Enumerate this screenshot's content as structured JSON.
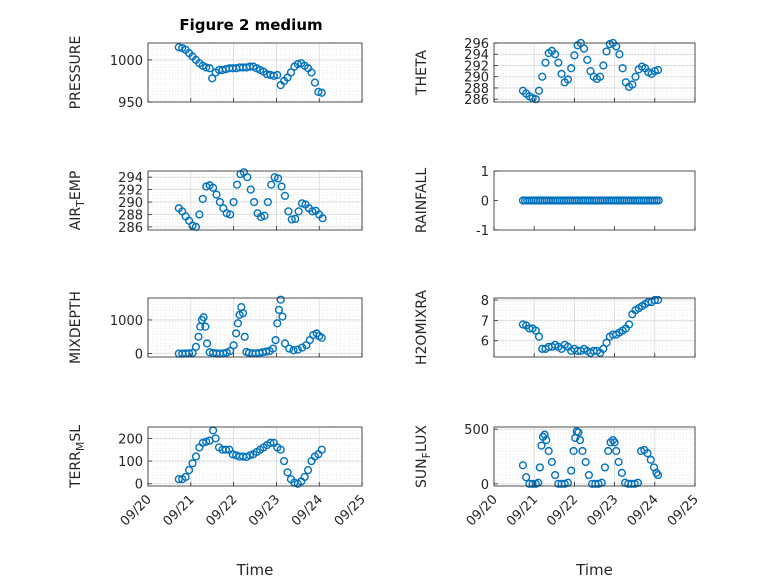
{
  "figure_title": "Figure 2 medium",
  "marker_color": "#0072BD",
  "chart_data": [
    {
      "type": "scatter",
      "subplot": "top-left",
      "ylabel": "PRESSURE",
      "ylim": [
        950,
        1020
      ],
      "yticks": [
        950,
        1000
      ],
      "xlim": [
        0,
        5
      ],
      "xticks": [
        "09/20",
        "09/21",
        "09/22",
        "09/23",
        "09/24",
        "09/25"
      ],
      "grid": true,
      "x": [
        0.72,
        0.8,
        0.88,
        0.96,
        1.04,
        1.12,
        1.2,
        1.28,
        1.36,
        1.44,
        1.5,
        1.58,
        1.66,
        1.74,
        1.82,
        1.9,
        1.98,
        2.06,
        2.14,
        2.22,
        2.3,
        2.38,
        2.46,
        2.54,
        2.62,
        2.7,
        2.78,
        2.86,
        2.94,
        3.02,
        3.1,
        3.18,
        3.26,
        3.34,
        3.42,
        3.5,
        3.58,
        3.66,
        3.74,
        3.82,
        3.9,
        3.98,
        4.06
      ],
      "y": [
        1015,
        1014,
        1012,
        1008,
        1004,
        1000,
        996,
        993,
        991,
        990,
        978,
        985,
        988,
        988,
        989,
        990,
        990,
        990,
        991,
        991,
        991,
        992,
        992,
        990,
        988,
        986,
        983,
        982,
        981,
        982,
        970,
        975,
        979,
        985,
        992,
        995,
        996,
        993,
        990,
        985,
        973,
        962,
        961
      ]
    },
    {
      "type": "scatter",
      "subplot": "top-right",
      "ylabel": "THETA",
      "ylim": [
        285.5,
        296
      ],
      "yticks": [
        286,
        288,
        290,
        292,
        294,
        296
      ],
      "xlim": [
        0,
        5
      ],
      "xticks": [
        "09/20",
        "09/21",
        "09/22",
        "09/23",
        "09/24",
        "09/25"
      ],
      "grid": true,
      "x": [
        0.72,
        0.8,
        0.88,
        0.96,
        1.04,
        1.12,
        1.2,
        1.28,
        1.36,
        1.44,
        1.52,
        1.6,
        1.68,
        1.76,
        1.84,
        1.92,
        2.0,
        2.08,
        2.16,
        2.24,
        2.32,
        2.4,
        2.48,
        2.56,
        2.64,
        2.72,
        2.8,
        2.88,
        2.96,
        3.04,
        3.12,
        3.2,
        3.28,
        3.36,
        3.44,
        3.52,
        3.6,
        3.68,
        3.76,
        3.84,
        3.92,
        4.0,
        4.08
      ],
      "y": [
        287.5,
        287,
        286.5,
        286.2,
        286,
        287.5,
        290,
        292.5,
        294.2,
        294.6,
        294,
        292.5,
        290.5,
        289,
        289.5,
        291.5,
        293.8,
        295.6,
        296,
        295,
        293,
        291,
        290,
        289.6,
        290,
        292,
        294.5,
        295.8,
        296,
        295.4,
        294,
        291.5,
        289,
        288.2,
        288.6,
        290,
        291.3,
        291.8,
        291.5,
        290.8,
        290.5,
        291,
        291.2
      ]
    },
    {
      "type": "scatter",
      "subplot": "row2-left",
      "ylabel": "AIR_TEMP",
      "ylim": [
        285.5,
        295
      ],
      "yticks": [
        286,
        288,
        290,
        292,
        294
      ],
      "xlim": [
        0,
        5
      ],
      "xticks": [
        "09/20",
        "09/21",
        "09/22",
        "09/23",
        "09/24",
        "09/25"
      ],
      "grid": true,
      "x": [
        0.72,
        0.8,
        0.88,
        0.96,
        1.04,
        1.12,
        1.2,
        1.28,
        1.36,
        1.44,
        1.52,
        1.6,
        1.68,
        1.76,
        1.84,
        1.92,
        2.0,
        2.08,
        2.16,
        2.24,
        2.32,
        2.4,
        2.48,
        2.56,
        2.64,
        2.72,
        2.8,
        2.88,
        2.96,
        3.04,
        3.12,
        3.2,
        3.28,
        3.36,
        3.44,
        3.52,
        3.6,
        3.68,
        3.76,
        3.84,
        3.92,
        4.0,
        4.08
      ],
      "y": [
        289,
        288.5,
        287.7,
        287,
        286.2,
        286,
        288,
        290.5,
        292.5,
        292.7,
        292.3,
        291.2,
        290,
        289,
        288.2,
        288,
        290,
        292.8,
        294.5,
        294.8,
        294,
        292,
        290,
        288.2,
        287.6,
        287.8,
        290,
        292.8,
        294,
        293.8,
        292.5,
        291,
        288.5,
        287.2,
        287.3,
        288.5,
        289.8,
        289.6,
        289,
        288.5,
        288.6,
        288,
        287.4
      ]
    },
    {
      "type": "scatter",
      "subplot": "row2-right",
      "ylabel": "RAINFALL",
      "ylim": [
        -1,
        1
      ],
      "yticks": [
        -1,
        0,
        1
      ],
      "xlim": [
        0,
        5
      ],
      "xticks": [
        "09/20",
        "09/21",
        "09/22",
        "09/23",
        "09/24",
        "09/25"
      ],
      "grid": false,
      "x_range": [
        0.72,
        4.1
      ],
      "value": 0
    },
    {
      "type": "scatter",
      "subplot": "row3-left",
      "ylabel": "MIXDEPTH",
      "ylim": [
        -100,
        1650
      ],
      "yticks": [
        0,
        1000
      ],
      "xlim": [
        0,
        5
      ],
      "xticks": [
        "09/20",
        "09/21",
        "09/22",
        "09/23",
        "09/24",
        "09/25"
      ],
      "grid": true,
      "x": [
        0.72,
        0.8,
        0.88,
        0.96,
        1.04,
        1.12,
        1.18,
        1.22,
        1.26,
        1.3,
        1.34,
        1.38,
        1.44,
        1.52,
        1.6,
        1.68,
        1.76,
        1.84,
        1.92,
        2.0,
        2.06,
        2.1,
        2.14,
        2.18,
        2.22,
        2.26,
        2.3,
        2.36,
        2.44,
        2.52,
        2.6,
        2.68,
        2.76,
        2.84,
        2.92,
        2.98,
        3.02,
        3.06,
        3.1,
        3.14,
        3.2,
        3.3,
        3.4,
        3.5,
        3.6,
        3.7,
        3.78,
        3.86,
        3.94,
        4.0,
        4.06
      ],
      "y": [
        0,
        0,
        5,
        10,
        20,
        200,
        500,
        800,
        1000,
        1080,
        800,
        300,
        40,
        20,
        10,
        0,
        10,
        30,
        80,
        250,
        600,
        900,
        1150,
        1380,
        1200,
        500,
        50,
        20,
        10,
        10,
        20,
        40,
        60,
        80,
        150,
        400,
        900,
        1300,
        1600,
        1100,
        300,
        150,
        100,
        120,
        180,
        250,
        400,
        550,
        600,
        520,
        470
      ]
    },
    {
      "type": "scatter",
      "subplot": "row3-right",
      "ylabel": "H2OMIXRA",
      "ylim": [
        5.2,
        8.1
      ],
      "yticks": [
        6,
        7,
        8
      ],
      "xlim": [
        0,
        5
      ],
      "xticks": [
        "09/20",
        "09/21",
        "09/22",
        "09/23",
        "09/24",
        "09/25"
      ],
      "grid": true,
      "x": [
        0.72,
        0.8,
        0.88,
        0.96,
        1.04,
        1.12,
        1.2,
        1.28,
        1.36,
        1.44,
        1.52,
        1.6,
        1.68,
        1.76,
        1.84,
        1.92,
        2.0,
        2.08,
        2.16,
        2.24,
        2.32,
        2.4,
        2.48,
        2.56,
        2.64,
        2.72,
        2.8,
        2.88,
        2.96,
        3.04,
        3.12,
        3.2,
        3.28,
        3.36,
        3.44,
        3.52,
        3.6,
        3.68,
        3.76,
        3.84,
        3.92,
        4.0,
        4.08
      ],
      "y": [
        6.8,
        6.75,
        6.6,
        6.6,
        6.5,
        6.2,
        5.6,
        5.6,
        5.7,
        5.7,
        5.8,
        5.7,
        5.6,
        5.8,
        5.7,
        5.5,
        5.6,
        5.5,
        5.5,
        5.6,
        5.5,
        5.4,
        5.5,
        5.5,
        5.4,
        5.6,
        5.9,
        6.2,
        6.3,
        6.3,
        6.4,
        6.5,
        6.6,
        6.8,
        7.3,
        7.5,
        7.6,
        7.7,
        7.8,
        7.9,
        7.9,
        8.0,
        8.0
      ]
    },
    {
      "type": "scatter",
      "subplot": "bottom-left",
      "ylabel": "TERR_MSL",
      "ylim": [
        -10,
        250
      ],
      "yticks": [
        0,
        100,
        200
      ],
      "xlim": [
        0,
        5
      ],
      "xticks": [
        "09/20",
        "09/21",
        "09/22",
        "09/23",
        "09/24",
        "09/25"
      ],
      "grid": true,
      "x": [
        0.72,
        0.8,
        0.88,
        0.96,
        1.04,
        1.12,
        1.2,
        1.28,
        1.36,
        1.44,
        1.52,
        1.58,
        1.66,
        1.74,
        1.82,
        1.9,
        1.98,
        2.06,
        2.14,
        2.22,
        2.3,
        2.38,
        2.46,
        2.54,
        2.62,
        2.7,
        2.78,
        2.86,
        2.94,
        3.02,
        3.1,
        3.18,
        3.26,
        3.34,
        3.42,
        3.5,
        3.58,
        3.66,
        3.74,
        3.82,
        3.9,
        3.98,
        4.06
      ],
      "y": [
        20,
        20,
        30,
        60,
        90,
        120,
        160,
        180,
        185,
        190,
        235,
        200,
        160,
        150,
        150,
        150,
        130,
        125,
        120,
        120,
        118,
        125,
        130,
        140,
        150,
        160,
        170,
        180,
        180,
        160,
        150,
        100,
        50,
        20,
        5,
        0,
        10,
        30,
        60,
        100,
        120,
        130,
        150
      ]
    },
    {
      "type": "scatter",
      "subplot": "bottom-right",
      "ylabel": "SUN_FLUX",
      "ylim": [
        -20,
        520
      ],
      "yticks": [
        0,
        500
      ],
      "xlim": [
        0,
        5
      ],
      "xticks": [
        "09/20",
        "09/21",
        "09/22",
        "09/23",
        "09/24",
        "09/25"
      ],
      "grid": true,
      "x": [
        0.72,
        0.8,
        0.88,
        0.96,
        1.04,
        1.1,
        1.14,
        1.18,
        1.22,
        1.26,
        1.3,
        1.36,
        1.44,
        1.52,
        1.6,
        1.68,
        1.76,
        1.84,
        1.92,
        1.98,
        2.02,
        2.06,
        2.1,
        2.14,
        2.2,
        2.28,
        2.36,
        2.44,
        2.52,
        2.6,
        2.68,
        2.76,
        2.84,
        2.9,
        2.96,
        3.0,
        3.04,
        3.1,
        3.18,
        3.26,
        3.34,
        3.42,
        3.5,
        3.58,
        3.66,
        3.74,
        3.82,
        3.9,
        3.98,
        4.04,
        4.08
      ],
      "y": [
        170,
        60,
        0,
        0,
        0,
        10,
        150,
        350,
        430,
        450,
        400,
        300,
        200,
        80,
        0,
        0,
        0,
        10,
        120,
        300,
        420,
        480,
        470,
        400,
        300,
        200,
        80,
        0,
        0,
        0,
        10,
        150,
        300,
        380,
        400,
        380,
        300,
        200,
        100,
        10,
        0,
        0,
        0,
        10,
        300,
        310,
        280,
        220,
        150,
        100,
        80
      ]
    }
  ],
  "xlabel": "Time",
  "show_xlabel_on": [
    "bottom-left",
    "bottom-right"
  ]
}
